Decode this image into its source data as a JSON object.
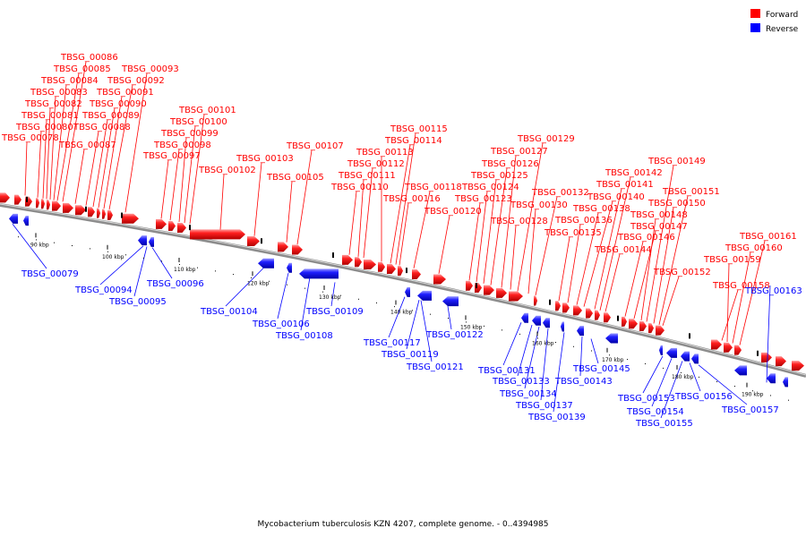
{
  "legend": [
    {
      "label": "Forward",
      "color": "#ff0000"
    },
    {
      "label": "Reverse",
      "color": "#0000ff"
    }
  ],
  "caption": "Mycobacterium tuberculosis KZN 4207, complete genome. - 0..4394985",
  "colors": {
    "forward": "#ff0000",
    "reverse": "#0000ff",
    "backbone": "#8c8c8c"
  },
  "scale_labels": [
    "90 kbp",
    "100 kbp",
    "110 kbp",
    "120 kbp",
    "130 kbp",
    "140 kbp",
    "150 kbp",
    "160 kbp",
    "170 kbp",
    "180 kbp",
    "190 kbp"
  ],
  "forward_genes": [
    "TBSG_00078",
    "TBSG_00080",
    "TBSG_00081",
    "TBSG_00082",
    "TBSG_00083",
    "TBSG_00084",
    "TBSG_00085",
    "TBSG_00086",
    "TBSG_00087",
    "TBSG_00088",
    "TBSG_00089",
    "TBSG_00090",
    "TBSG_00091",
    "TBSG_00092",
    "TBSG_00093",
    "TBSG_00097",
    "TBSG_00098",
    "TBSG_00099",
    "TBSG_00100",
    "TBSG_00101",
    "TBSG_00102",
    "TBSG_00103",
    "TBSG_00105",
    "TBSG_00107",
    "TBSG_00110",
    "TBSG_00111",
    "TBSG_00112",
    "TBSG_00113",
    "TBSG_00114",
    "TBSG_00115",
    "TBSG_00116",
    "TBSG_00118",
    "TBSG_00120",
    "TBSG_00123",
    "TBSG_00124",
    "TBSG_00125",
    "TBSG_00126",
    "TBSG_00127",
    "TBSG_00128",
    "TBSG_00129",
    "TBSG_00130",
    "TBSG_00132",
    "TBSG_00135",
    "TBSG_00136",
    "TBSG_00138",
    "TBSG_00140",
    "TBSG_00141",
    "TBSG_00142",
    "TBSG_00144",
    "TBSG_00146",
    "TBSG_00147",
    "TBSG_00148",
    "TBSG_00149",
    "TBSG_00150",
    "TBSG_00151",
    "TBSG_00152",
    "TBSG_00158",
    "TBSG_00159",
    "TBSG_00160",
    "TBSG_00161"
  ],
  "reverse_genes": [
    "TBSG_00079",
    "TBSG_00094",
    "TBSG_00095",
    "TBSG_00096",
    "TBSG_00104",
    "TBSG_00106",
    "TBSG_00108",
    "TBSG_00109",
    "TBSG_00117",
    "TBSG_00119",
    "TBSG_00121",
    "TBSG_00122",
    "TBSG_00131",
    "TBSG_00133",
    "TBSG_00134",
    "TBSG_00137",
    "TBSG_00139",
    "TBSG_00143",
    "TBSG_00145",
    "TBSG_00153",
    "TBSG_00154",
    "TBSG_00155",
    "TBSG_00156",
    "TBSG_00157",
    "TBSG_00163"
  ]
}
